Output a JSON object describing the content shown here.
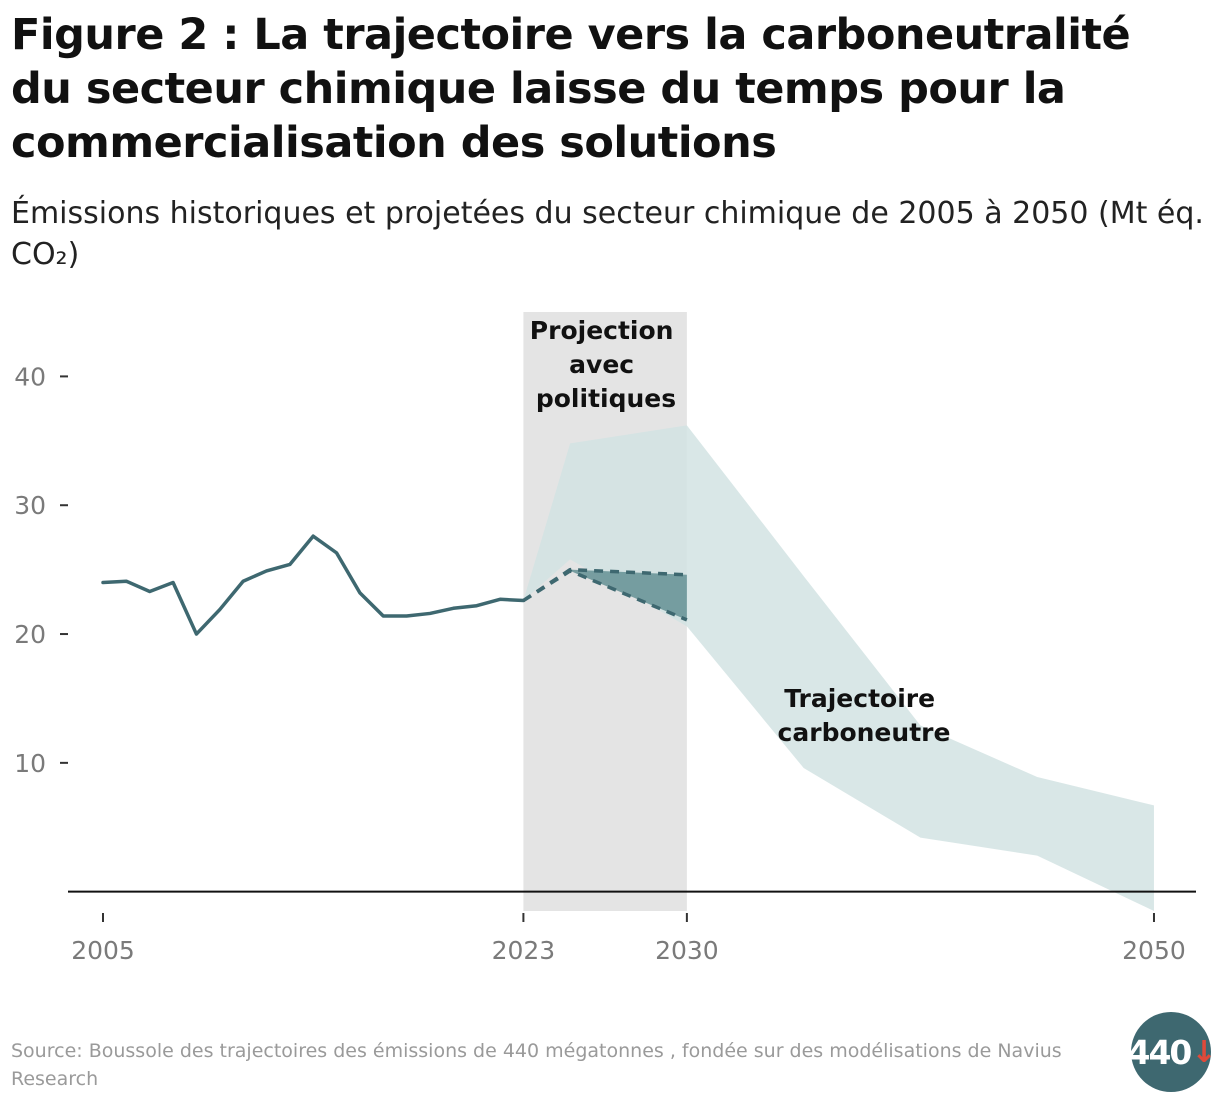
{
  "title": "Figure 2 : La trajectoire vers la carboneutralité du secteur chimique laisse du temps pour la commercialisation des solutions",
  "subtitle": "Émissions historiques et projetées du secteur chimique de 2005 à 2050 (Mt éq. CO₂)",
  "source": "Source: Boussole des trajectoires des émissions de 440 mégatonnes , fondée sur des modélisations de Navius Research",
  "logo": {
    "text": "440",
    "arrow": "↓"
  },
  "colors": {
    "historical_line": "#3e6870",
    "net_zero_band": "#d2e3e3",
    "policy_band": "#6a9598",
    "projection_shade": "#e4e4e4",
    "axis": "#111111"
  },
  "chart_data": {
    "type": "line",
    "x_ticks": [
      "2005",
      "2023",
      "2030",
      "2050"
    ],
    "y_ticks": [
      "10",
      "20",
      "30",
      "40"
    ],
    "xlim": [
      2004.4,
      2050.9
    ],
    "ylim": [
      -1.5,
      45
    ],
    "projection_region": {
      "from": 2023,
      "to": 2030
    },
    "annotations": {
      "projection": [
        "Projection",
        "avec",
        "politiques"
      ],
      "net_zero": [
        "Trajectoire",
        "carboneutre"
      ]
    },
    "series": [
      {
        "name": "Historique",
        "style": "solid",
        "x": [
          2005,
          2006,
          2007,
          2008,
          2009,
          2010,
          2011,
          2012,
          2013,
          2014,
          2015,
          2016,
          2017,
          2018,
          2019,
          2020,
          2021,
          2022,
          2023
        ],
        "y": [
          24.0,
          24.1,
          23.3,
          24.0,
          20.0,
          21.9,
          24.1,
          24.9,
          25.4,
          27.6,
          26.3,
          23.2,
          21.4,
          21.4,
          21.6,
          22.0,
          22.2,
          22.7,
          22.6
        ]
      },
      {
        "name": "Projection haute",
        "style": "dashed",
        "x": [
          2023,
          2025,
          2030
        ],
        "y": [
          22.6,
          25.0,
          24.6
        ]
      },
      {
        "name": "Projection basse",
        "style": "dashed",
        "x": [
          2023,
          2025,
          2030
        ],
        "y": [
          22.6,
          24.9,
          21.1
        ]
      },
      {
        "name": "Projection avec politiques",
        "style": "band",
        "x": [
          2025,
          2030
        ],
        "upper": [
          25.0,
          24.6
        ],
        "lower": [
          24.9,
          21.1
        ]
      },
      {
        "name": "Trajectoire carboneutre",
        "style": "band",
        "x": [
          2023,
          2025,
          2030,
          2035,
          2040,
          2045,
          2050
        ],
        "upper": [
          22.6,
          34.8,
          36.2,
          24.5,
          12.9,
          8.9,
          6.7
        ],
        "lower": [
          22.6,
          25.8,
          20.6,
          9.6,
          4.2,
          2.8,
          -1.5
        ]
      }
    ]
  }
}
